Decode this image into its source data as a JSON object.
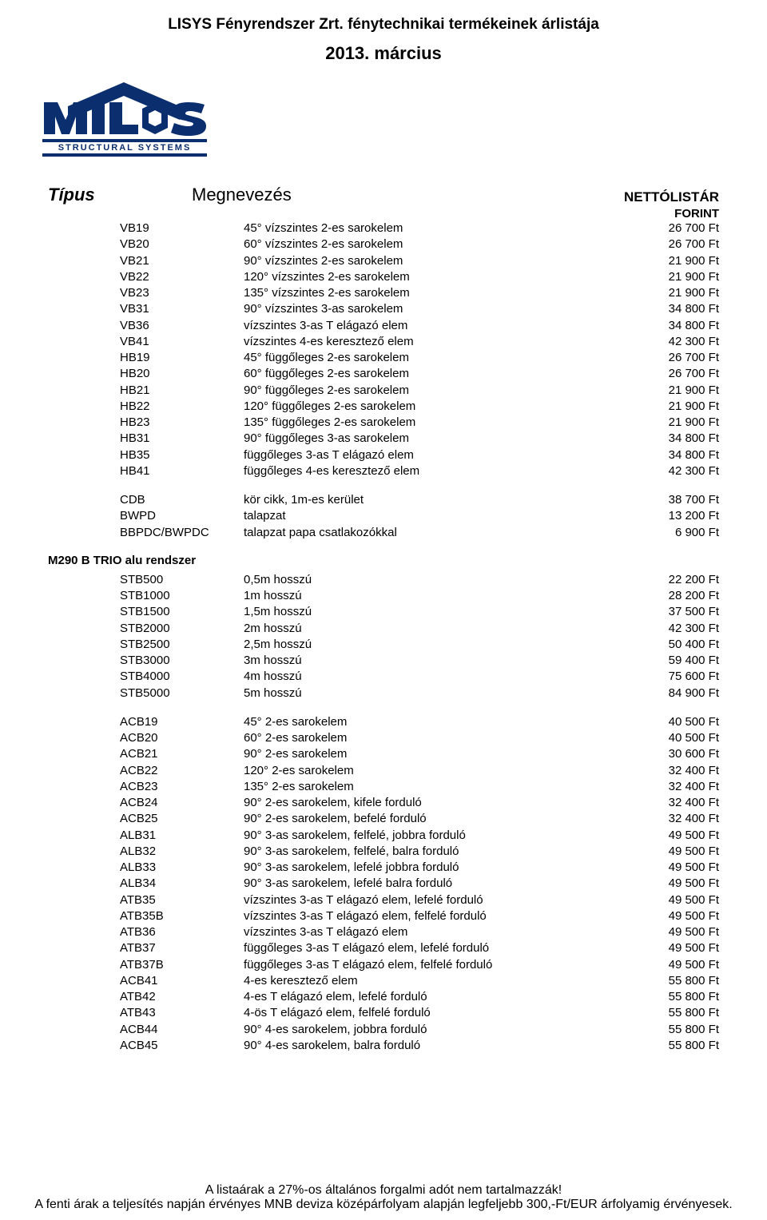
{
  "header": {
    "title": "LISYS Fényrendszer Zrt. fénytechnikai termékeinek árlistája",
    "date": "2013. március"
  },
  "logo": {
    "text_top": "MILOS",
    "text_bottom": "STRUCTURAL SYSTEMS",
    "fill_color": "#0b2e6f",
    "outline_color": "#0b2e6f",
    "letter_o_fill": "#0b2e6f"
  },
  "columns": {
    "type": "Típus",
    "desc": "Megnevezés",
    "price": "NETTÓLISTÁR",
    "currency": "FORINT"
  },
  "blocks": [
    {
      "rows": [
        {
          "code": "VB19",
          "desc": "45° vízszintes 2-es sarokelem",
          "price": "26 700 Ft"
        },
        {
          "code": "VB20",
          "desc": "60° vízszintes 2-es sarokelem",
          "price": "26 700 Ft"
        },
        {
          "code": "VB21",
          "desc": "90° vízszintes 2-es sarokelem",
          "price": "21 900 Ft"
        },
        {
          "code": "VB22",
          "desc": "120° vízszintes 2-es sarokelem",
          "price": "21 900 Ft"
        },
        {
          "code": "VB23",
          "desc": "135° vízszintes 2-es sarokelem",
          "price": "21 900 Ft"
        },
        {
          "code": "VB31",
          "desc": "90° vízszintes 3-as sarokelem",
          "price": "34 800 Ft"
        },
        {
          "code": "VB36",
          "desc": "vízszintes 3-as T elágazó elem",
          "price": "34 800 Ft"
        },
        {
          "code": "VB41",
          "desc": "vízszintes 4-es keresztező elem",
          "price": "42 300 Ft"
        },
        {
          "code": "HB19",
          "desc": "45° függőleges 2-es sarokelem",
          "price": "26 700 Ft"
        },
        {
          "code": "HB20",
          "desc": "60° függőleges 2-es sarokelem",
          "price": "26 700 Ft"
        },
        {
          "code": "HB21",
          "desc": "90° függőleges 2-es sarokelem",
          "price": "21 900 Ft"
        },
        {
          "code": "HB22",
          "desc": "120° függőleges 2-es sarokelem",
          "price": "21 900 Ft"
        },
        {
          "code": "HB23",
          "desc": "135° függőleges 2-es sarokelem",
          "price": "21 900 Ft"
        },
        {
          "code": "HB31",
          "desc": "90° függőleges 3-as sarokelem",
          "price": "34 800 Ft"
        },
        {
          "code": "HB35",
          "desc": "függőleges 3-as T elágazó elem",
          "price": "34 800 Ft"
        },
        {
          "code": "HB41",
          "desc": "függőleges 4-es keresztező elem",
          "price": "42 300 Ft"
        }
      ]
    },
    {
      "rows": [
        {
          "code": "CDB",
          "desc": "kör cikk, 1m-es kerület",
          "price": "38 700 Ft"
        },
        {
          "code": "BWPD",
          "desc": "talapzat",
          "price": "13 200 Ft"
        },
        {
          "code": "BBPDC/BWPDC",
          "desc": "talapzat papa csatlakozókkal",
          "price": "6 900 Ft"
        }
      ]
    }
  ],
  "section_title": "M290 B TRIO alu rendszer",
  "section_blocks": [
    {
      "rows": [
        {
          "code": "STB500",
          "desc": "0,5m hosszú",
          "price": "22 200 Ft"
        },
        {
          "code": "STB1000",
          "desc": "1m hosszú",
          "price": "28 200 Ft"
        },
        {
          "code": "STB1500",
          "desc": "1,5m hosszú",
          "price": "37 500 Ft"
        },
        {
          "code": "STB2000",
          "desc": "2m hosszú",
          "price": "42 300 Ft"
        },
        {
          "code": "STB2500",
          "desc": "2,5m hosszú",
          "price": "50 400 Ft"
        },
        {
          "code": "STB3000",
          "desc": "3m hosszú",
          "price": "59 400 Ft"
        },
        {
          "code": "STB4000",
          "desc": "4m hosszú",
          "price": "75 600 Ft"
        },
        {
          "code": "STB5000",
          "desc": "5m hosszú",
          "price": "84 900 Ft"
        }
      ]
    },
    {
      "rows": [
        {
          "code": "ACB19",
          "desc": "45° 2-es sarokelem",
          "price": "40 500 Ft"
        },
        {
          "code": "ACB20",
          "desc": "60° 2-es sarokelem",
          "price": "40 500 Ft"
        },
        {
          "code": "ACB21",
          "desc": "90° 2-es sarokelem",
          "price": "30 600 Ft"
        },
        {
          "code": "ACB22",
          "desc": "120° 2-es sarokelem",
          "price": "32 400 Ft"
        },
        {
          "code": "ACB23",
          "desc": "135° 2-es sarokelem",
          "price": "32 400 Ft"
        },
        {
          "code": "ACB24",
          "desc": "90° 2-es sarokelem, kifele forduló",
          "price": "32 400 Ft"
        },
        {
          "code": "ACB25",
          "desc": "90° 2-es sarokelem, befelé forduló",
          "price": "32 400 Ft"
        },
        {
          "code": "ALB31",
          "desc": "90° 3-as sarokelem, felfelé, jobbra forduló",
          "price": "49 500 Ft"
        },
        {
          "code": "ALB32",
          "desc": "90° 3-as sarokelem, felfelé, balra forduló",
          "price": "49 500 Ft"
        },
        {
          "code": "ALB33",
          "desc": "90° 3-as sarokelem, lefelé jobbra forduló",
          "price": "49 500 Ft"
        },
        {
          "code": "ALB34",
          "desc": "90° 3-as sarokelem, lefelé balra forduló",
          "price": "49 500 Ft"
        },
        {
          "code": "ATB35",
          "desc": "vízszintes 3-as T elágazó elem, lefelé forduló",
          "price": "49 500 Ft"
        },
        {
          "code": "ATB35B",
          "desc": "vízszintes 3-as T elágazó elem, felfelé forduló",
          "price": "49 500 Ft"
        },
        {
          "code": "ATB36",
          "desc": "vízszintes 3-as T elágazó elem",
          "price": "49 500 Ft"
        },
        {
          "code": "ATB37",
          "desc": "függőleges 3-as T elágazó elem, lefelé forduló",
          "price": "49 500 Ft"
        },
        {
          "code": "ATB37B",
          "desc": "függőleges 3-as T elágazó elem, felfelé forduló",
          "price": "49 500 Ft"
        },
        {
          "code": "ACB41",
          "desc": "4-es keresztező elem",
          "price": "55 800 Ft"
        },
        {
          "code": "ATB42",
          "desc": "4-es T elágazó elem, lefelé forduló",
          "price": "55 800 Ft"
        },
        {
          "code": "ATB43",
          "desc": "4-ös T elágazó elem, felfelé forduló",
          "price": "55 800 Ft"
        },
        {
          "code": "ACB44",
          "desc": "90° 4-es sarokelem, jobbra forduló",
          "price": "55 800 Ft"
        },
        {
          "code": "ACB45",
          "desc": "90° 4-es sarokelem, balra forduló",
          "price": "55 800 Ft"
        }
      ]
    }
  ],
  "footer": {
    "line1": "A listaárak a 27%-os általános forgalmi adót nem tartalmazzák!",
    "line2": "A fenti árak a teljesítés napján érvényes MNB deviza középárfolyam alapján legfeljebb 300,-Ft/EUR árfolyamig érvényesek."
  }
}
